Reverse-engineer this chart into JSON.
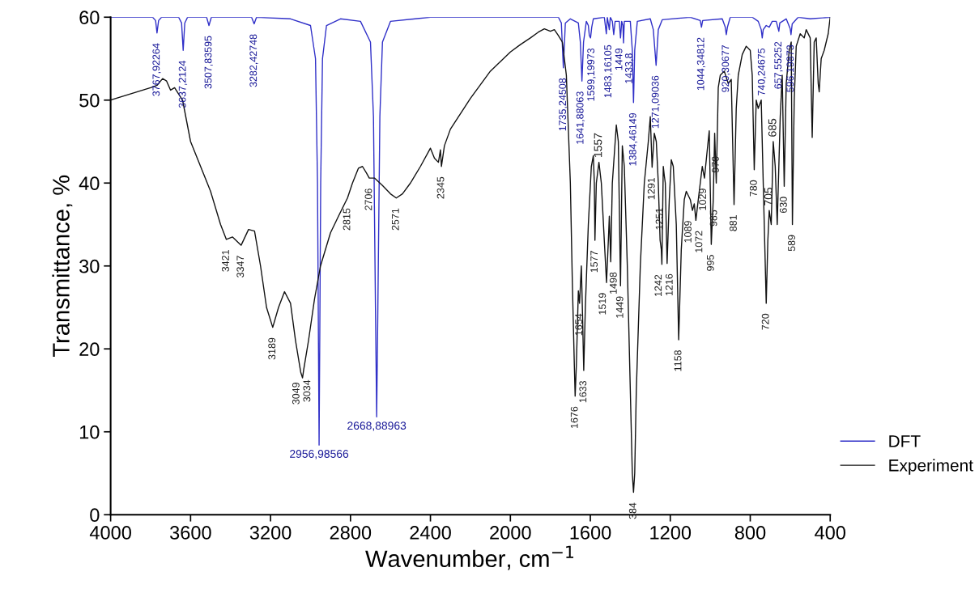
{
  "chart_data": {
    "type": "line",
    "xlabel": "Wavenumber, cm$^{−1}$",
    "ylabel": "Transmittance, %",
    "xlim": [
      4000,
      400
    ],
    "xticks": [
      4000,
      3600,
      3200,
      2800,
      2400,
      2000,
      1600,
      1200,
      800,
      400
    ],
    "ylim": [
      0,
      60
    ],
    "yticks": [
      0,
      10,
      20,
      30,
      40,
      50,
      60
    ],
    "grid": false,
    "legend": "bottom right",
    "marker": "none",
    "line_style": "solid",
    "series": [
      {
        "name": "DFT",
        "color": "#3030c8",
        "x": [
          4000,
          3790,
          3775,
          3768,
          3760,
          3745,
          3660,
          3645,
          3637,
          3629,
          3615,
          3520,
          3508,
          3496,
          3295,
          3282,
          3270,
          3100,
          3000,
          2975,
          2965,
          2960,
          2957,
          2954,
          2949,
          2940,
          2920,
          2850,
          2750,
          2700,
          2685,
          2675,
          2669,
          2663,
          2653,
          2640,
          2600,
          2400,
          1760,
          1745,
          1735,
          1725,
          1700,
          1660,
          1650,
          1642,
          1634,
          1620,
          1610,
          1605,
          1599,
          1593,
          1585,
          1530,
          1520,
          1515,
          1505,
          1500,
          1490,
          1483,
          1476,
          1455,
          1449,
          1443,
          1437,
          1434,
          1430,
          1400,
          1390,
          1384,
          1378,
          1365,
          1300,
          1285,
          1271,
          1260,
          1240,
          1100,
          1050,
          1044,
          1038,
          940,
          925,
          920,
          914,
          900,
          790,
          760,
          745,
          740,
          735,
          720,
          705,
          690,
          670,
          660,
          657,
          652,
          620,
          600,
          596,
          590,
          560,
          500,
          400
        ],
        "values": [
          60,
          60,
          59.6,
          58.1,
          59.6,
          60,
          60,
          59.3,
          56.0,
          59.3,
          60,
          60,
          59.0,
          60,
          60,
          59.2,
          60,
          59.8,
          59,
          55,
          40,
          20,
          8.4,
          20,
          40,
          55,
          59,
          59.8,
          59.5,
          57,
          48,
          25,
          11.8,
          25,
          48,
          57,
          59.5,
          60,
          60,
          59.3,
          53.9,
          59.3,
          59.8,
          59.3,
          57,
          52.3,
          57,
          59.5,
          59,
          57.8,
          57.5,
          58.8,
          59.8,
          60,
          58,
          60,
          58.5,
          60,
          59.5,
          57.9,
          59.5,
          59.5,
          57.5,
          59.5,
          59,
          56.9,
          59.5,
          59.5,
          56,
          49.7,
          56,
          59.5,
          59.8,
          58.5,
          54.2,
          58.5,
          59.7,
          60,
          59.6,
          58.8,
          59.6,
          59.8,
          58.8,
          57.9,
          58.8,
          60,
          60,
          59.5,
          58.5,
          57.5,
          58.5,
          59,
          58.8,
          59.5,
          59.5,
          58.6,
          58.3,
          59.3,
          59.8,
          58.6,
          57.9,
          59.2,
          60,
          59.8,
          60
        ]
      },
      {
        "name": "Experiment",
        "color": "#111111",
        "x": [
          4000,
          3800,
          3767,
          3740,
          3720,
          3700,
          3680,
          3640,
          3600,
          3500,
          3450,
          3421,
          3390,
          3347,
          3310,
          3280,
          3250,
          3220,
          3189,
          3160,
          3130,
          3100,
          3075,
          3049,
          3040,
          3034,
          3010,
          2980,
          2950,
          2900,
          2860,
          2815,
          2790,
          2760,
          2740,
          2720,
          2706,
          2680,
          2640,
          2600,
          2571,
          2540,
          2500,
          2450,
          2400,
          2380,
          2360,
          2350,
          2345,
          2330,
          2300,
          2200,
          2100,
          2000,
          1950,
          1900,
          1860,
          1830,
          1800,
          1780,
          1760,
          1740,
          1720,
          1700,
          1690,
          1680,
          1676,
          1670,
          1660,
          1654,
          1645,
          1640,
          1633,
          1625,
          1610,
          1595,
          1585,
          1580,
          1577,
          1570,
          1557,
          1545,
          1530,
          1519,
          1510,
          1505,
          1498,
          1490,
          1470,
          1460,
          1449,
          1440,
          1430,
          1415,
          1400,
          1390,
          1384,
          1378,
          1370,
          1350,
          1330,
          1310,
          1300,
          1291,
          1280,
          1270,
          1260,
          1251,
          1245,
          1242,
          1235,
          1230,
          1225,
          1216,
          1205,
          1195,
          1185,
          1170,
          1158,
          1145,
          1130,
          1120,
          1100,
          1089,
          1080,
          1072,
          1060,
          1040,
          1029,
          1015,
          1005,
          995,
          985,
          978,
          970,
          960,
          950,
          930,
          910,
          895,
          881,
          870,
          860,
          840,
          820,
          800,
          790,
          780,
          770,
          760,
          745,
          735,
          720,
          712,
          705,
          695,
          685,
          675,
          665,
          650,
          640,
          630,
          620,
          605,
          595,
          589,
          580,
          570,
          550,
          530,
          520,
          500,
          490,
          480,
          470,
          460,
          455,
          445,
          430,
          410,
          400
        ],
        "values": [
          50.0,
          51.5,
          51.8,
          52.6,
          52.3,
          51.2,
          51.5,
          50,
          45,
          39,
          35,
          33.2,
          33.5,
          32.5,
          34.4,
          34.2,
          30,
          25,
          22.6,
          25,
          26.9,
          25.5,
          21,
          17.2,
          16.5,
          17.5,
          21,
          26,
          30,
          34,
          36,
          38.2,
          40,
          41.8,
          42,
          41.2,
          40.6,
          40.6,
          39.7,
          38.7,
          38.2,
          38.7,
          40,
          42,
          44.2,
          43,
          42.5,
          44,
          42,
          44.5,
          46.5,
          50.2,
          53.5,
          55.8,
          56.7,
          57.5,
          58.2,
          58.6,
          58.3,
          58.5,
          57.8,
          57,
          53,
          40,
          28,
          18,
          14.3,
          18,
          27,
          25.5,
          30,
          25,
          17.4,
          25,
          35,
          42,
          43.3,
          40,
          33.1,
          40,
          42.5,
          40,
          33,
          28,
          33,
          36,
          30.5,
          40,
          47,
          45,
          27.6,
          44.5,
          42,
          30,
          15,
          5,
          2.7,
          5,
          15,
          30,
          40,
          45,
          48,
          41.9,
          46,
          45,
          40,
          33.1,
          32,
          30.2,
          42,
          40.9,
          40,
          30.3,
          38,
          42.8,
          42,
          35,
          21.1,
          32,
          38,
          39,
          38,
          36.7,
          37.5,
          35.5,
          38,
          42,
          40.6,
          44,
          46.3,
          32.6,
          38,
          46,
          40,
          51.5,
          53,
          53.5,
          52,
          52.5,
          37.4,
          49,
          53,
          55.5,
          56.5,
          56,
          53,
          41.6,
          50,
          49,
          50,
          40,
          25.5,
          33,
          36.7,
          35,
          45,
          42,
          35,
          48,
          53,
          39.6,
          52,
          56,
          57,
          35,
          50,
          56.5,
          58,
          57.5,
          58.5,
          57.5,
          45.5,
          57,
          57.5,
          52,
          51,
          55,
          56,
          58,
          60
        ]
      }
    ],
    "annotations": [
      {
        "text": "3767,92264",
        "x": 3768,
        "y": 58.1
      },
      {
        "text": "3637,2124",
        "x": 3637,
        "y": 56.0
      },
      {
        "text": "3507,83595",
        "x": 3508,
        "y": 59.0
      },
      {
        "text": "3282,42748",
        "x": 3282,
        "y": 59.2
      },
      {
        "text": "2956,98566",
        "x": 2957,
        "y": 8.4
      },
      {
        "text": "2668,88963",
        "x": 2669,
        "y": 11.8
      },
      {
        "text": "1735,24508",
        "x": 1735,
        "y": 53.9
      },
      {
        "text": "1641,88063",
        "x": 1642,
        "y": 52.3
      },
      {
        "text": "1599,19973",
        "x": 1599,
        "y": 57.5
      },
      {
        "text": "1483,16105",
        "x": 1483,
        "y": 57.9
      },
      {
        "text": "1449",
        "x": 1449,
        "y": 57.5
      },
      {
        "text": "1433,8",
        "x": 1434,
        "y": 56.9
      },
      {
        "text": "1384,46149",
        "x": 1384,
        "y": 49.7
      },
      {
        "text": "1271,09036",
        "x": 1271,
        "y": 54.2
      },
      {
        "text": "1044,34812",
        "x": 1044,
        "y": 58.8
      },
      {
        "text": "920,30677",
        "x": 920,
        "y": 57.9
      },
      {
        "text": "740,24675",
        "x": 740,
        "y": 57.5
      },
      {
        "text": "657,55252",
        "x": 657,
        "y": 58.3
      },
      {
        "text": "596,19873",
        "x": 596,
        "y": 57.9
      },
      {
        "text": "3421",
        "x": 3421,
        "y": 33.2
      },
      {
        "text": "3347",
        "x": 3347,
        "y": 32.5
      },
      {
        "text": "3189",
        "x": 3189,
        "y": 22.6
      },
      {
        "text": "3049",
        "x": 3049,
        "y": 17.2
      },
      {
        "text": "3034",
        "x": 3034,
        "y": 17.5
      },
      {
        "text": "2815",
        "x": 2815,
        "y": 38.2
      },
      {
        "text": "2706",
        "x": 2706,
        "y": 40.6
      },
      {
        "text": "2571",
        "x": 2571,
        "y": 38.2
      },
      {
        "text": "2345",
        "x": 2345,
        "y": 42
      },
      {
        "text": "1676",
        "x": 1676,
        "y": 14.3
      },
      {
        "text": "1654",
        "x": 1654,
        "y": 25.5
      },
      {
        "text": "1633",
        "x": 1633,
        "y": 17.4
      },
      {
        "text": "1577",
        "x": 1577,
        "y": 33.1
      },
      {
        "text": "1557",
        "x": 1557,
        "y": 42.5
      },
      {
        "text": "1519",
        "x": 1519,
        "y": 28
      },
      {
        "text": "1498",
        "x": 1498,
        "y": 30.5
      },
      {
        "text": "1449",
        "x": 1449,
        "y": 27.6
      },
      {
        "text": "384",
        "x": 1384,
        "y": 2.7
      },
      {
        "text": "1291",
        "x": 1291,
        "y": 41.9
      },
      {
        "text": "1251",
        "x": 1251,
        "y": 33.1
      },
      {
        "text": "1242",
        "x": 1242,
        "y": 30.2
      },
      {
        "text": "1216",
        "x": 1216,
        "y": 30.3
      },
      {
        "text": "1158",
        "x": 1158,
        "y": 21.1
      },
      {
        "text": "1089",
        "x": 1089,
        "y": 36.7
      },
      {
        "text": "1072",
        "x": 1072,
        "y": 35.5
      },
      {
        "text": "1029",
        "x": 1029,
        "y": 40.6
      },
      {
        "text": "995",
        "x": 995,
        "y": 32.6
      },
      {
        "text": "985",
        "x": 985,
        "y": 38
      },
      {
        "text": "970",
        "x": 970,
        "y": 40
      },
      {
        "text": "881",
        "x": 881,
        "y": 37.4
      },
      {
        "text": "780",
        "x": 780,
        "y": 41.6
      },
      {
        "text": "720",
        "x": 720,
        "y": 25.5
      },
      {
        "text": "705",
        "x": 705,
        "y": 36.7
      },
      {
        "text": "685",
        "x": 685,
        "y": 45
      },
      {
        "text": "630",
        "x": 630,
        "y": 39.6
      },
      {
        "text": "589",
        "x": 589,
        "y": 35
      }
    ]
  }
}
